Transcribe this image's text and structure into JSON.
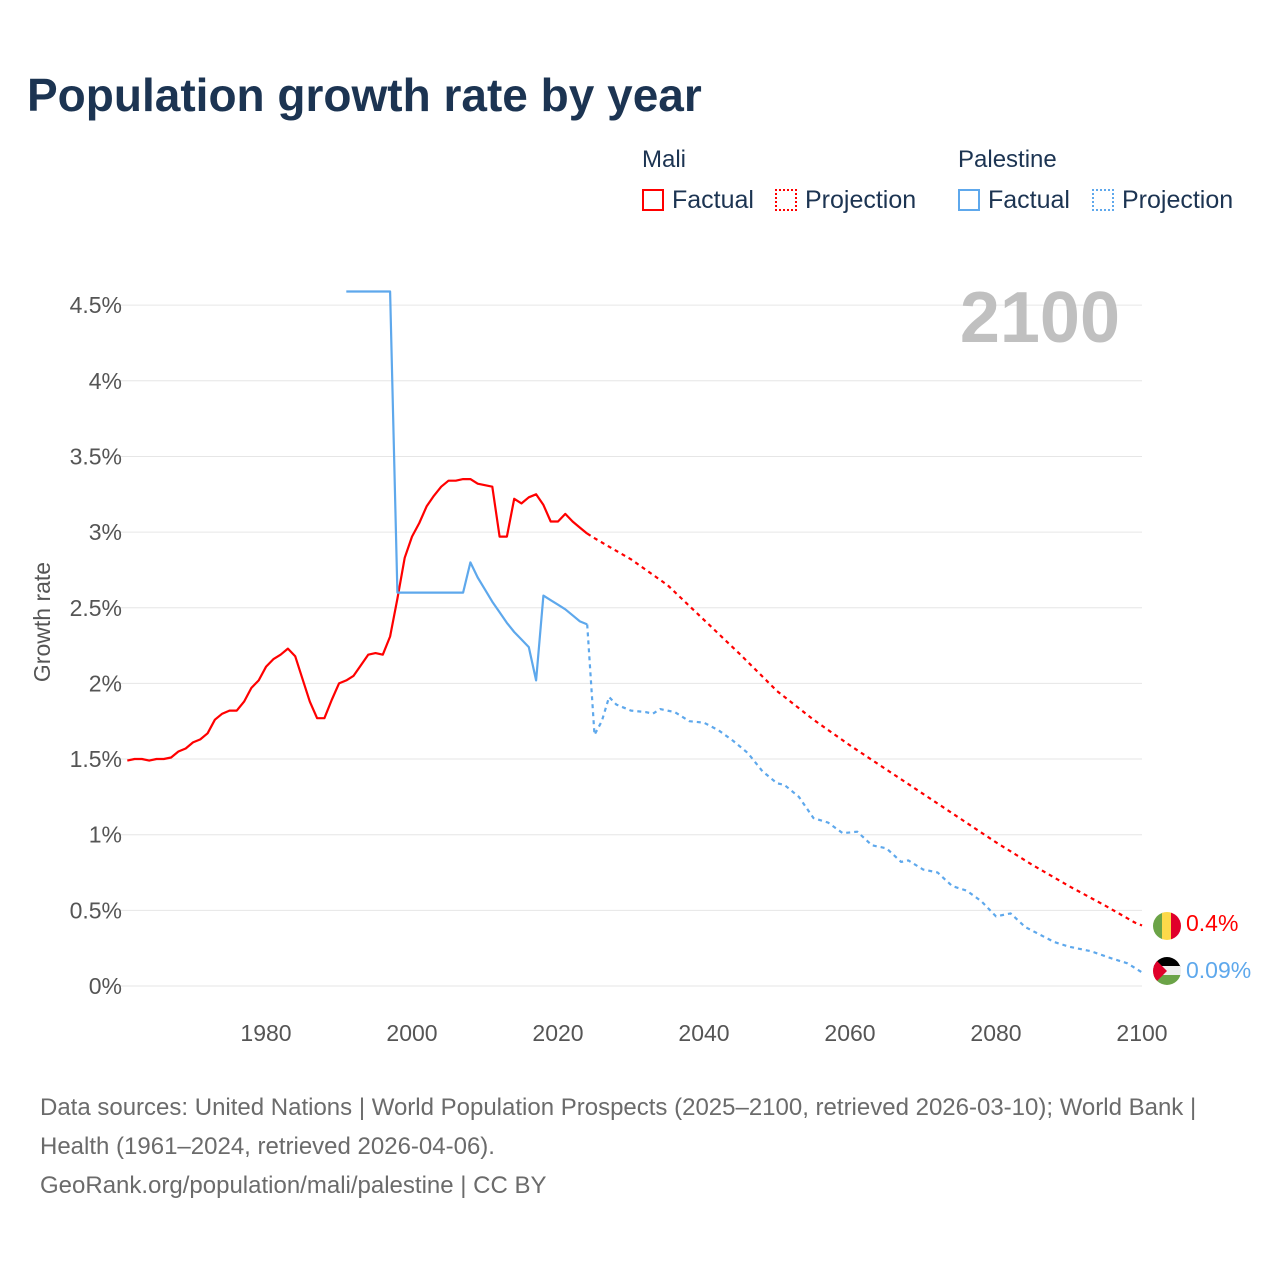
{
  "title": "Population growth rate by year",
  "legend": {
    "groups": [
      {
        "name": "Mali",
        "color": "#ff0000",
        "items": [
          "Factual",
          "Projection"
        ]
      },
      {
        "name": "Palestine",
        "color": "#5ea8ec",
        "items": [
          "Factual",
          "Projection"
        ]
      }
    ]
  },
  "year_label": "2100",
  "end_labels": {
    "mali": "0.4%",
    "palestine": "0.09%"
  },
  "footer": {
    "sources": "Data sources: United Nations | World Population Prospects (2025–2100, retrieved 2026-03-10); World Bank | Health (1961–2024, retrieved 2026-04-06).",
    "link": "GeoRank.org/population/mali/palestine | CC BY"
  },
  "chart_data": {
    "type": "line",
    "title": "Population growth rate by year",
    "xlabel": "",
    "ylabel": "Growth rate",
    "xlim": [
      1961,
      2100
    ],
    "ylim": [
      0,
      4.5
    ],
    "x_ticks": [
      "1980",
      "2000",
      "2020",
      "2040",
      "2060",
      "2080",
      "2100"
    ],
    "y_ticks": [
      "0%",
      "0.5%",
      "1%",
      "1.5%",
      "2%",
      "2.5%",
      "3%",
      "3.5%",
      "4%",
      "4.5%"
    ],
    "grid": true,
    "legend_position": "top-right",
    "series": [
      {
        "name": "Mali Factual",
        "color": "#ff0000",
        "dashed": false,
        "x": [
          1961,
          1962,
          1963,
          1964,
          1965,
          1966,
          1967,
          1968,
          1969,
          1970,
          1971,
          1972,
          1973,
          1974,
          1975,
          1976,
          1977,
          1978,
          1979,
          1980,
          1981,
          1982,
          1983,
          1984,
          1985,
          1986,
          1987,
          1988,
          1989,
          1990,
          1991,
          1992,
          1993,
          1994,
          1995,
          1996,
          1997,
          1998,
          1999,
          2000,
          2001,
          2002,
          2003,
          2004,
          2005,
          2006,
          2007,
          2008,
          2009,
          2010,
          2011,
          2012,
          2013,
          2014,
          2015,
          2016,
          2017,
          2018,
          2019,
          2020,
          2021,
          2022,
          2023,
          2024
        ],
        "y": [
          1.49,
          1.5,
          1.5,
          1.49,
          1.5,
          1.5,
          1.51,
          1.55,
          1.57,
          1.61,
          1.63,
          1.67,
          1.76,
          1.8,
          1.82,
          1.82,
          1.88,
          1.97,
          2.02,
          2.11,
          2.16,
          2.19,
          2.23,
          2.18,
          2.03,
          1.88,
          1.77,
          1.77,
          1.89,
          2.0,
          2.02,
          2.05,
          2.12,
          2.19,
          2.2,
          2.19,
          2.31,
          2.56,
          2.83,
          2.97,
          3.06,
          3.17,
          3.24,
          3.3,
          3.34,
          3.34,
          3.35,
          3.35,
          3.32,
          3.31,
          3.3,
          2.97,
          2.97,
          3.22,
          3.19,
          3.23,
          3.25,
          3.18,
          3.07,
          3.07,
          3.12,
          3.07,
          3.03,
          2.99
        ]
      },
      {
        "name": "Mali Projection",
        "color": "#ff0000",
        "dashed": true,
        "x": [
          2024,
          2025,
          2030,
          2035,
          2040,
          2045,
          2050,
          2055,
          2060,
          2065,
          2070,
          2075,
          2080,
          2085,
          2090,
          2095,
          2099,
          2100
        ],
        "y": [
          2.99,
          2.96,
          2.82,
          2.65,
          2.42,
          2.19,
          1.95,
          1.76,
          1.59,
          1.43,
          1.27,
          1.11,
          0.95,
          0.8,
          0.66,
          0.53,
          0.42,
          0.4
        ]
      },
      {
        "name": "Palestine Factual",
        "color": "#5ea8ec",
        "dashed": false,
        "x": [
          1991,
          1997,
          1998,
          2007,
          2008,
          2009,
          2010,
          2011,
          2012,
          2013,
          2014,
          2015,
          2016,
          2017,
          2018,
          2019,
          2020,
          2021,
          2022,
          2023,
          2024
        ],
        "y": [
          4.59,
          4.59,
          2.6,
          2.6,
          2.8,
          2.7,
          2.62,
          2.54,
          2.47,
          2.4,
          2.34,
          2.29,
          2.24,
          2.02,
          2.58,
          2.55,
          2.52,
          2.49,
          2.45,
          2.41,
          2.39
        ]
      },
      {
        "name": "Palestine Projection",
        "color": "#5ea8ec",
        "dashed": true,
        "x": [
          2024,
          2025,
          2026,
          2027,
          2028,
          2030,
          2032,
          2033,
          2034,
          2036,
          2038,
          2040,
          2042,
          2044,
          2046,
          2048,
          2050,
          2051,
          2053,
          2055,
          2057,
          2059,
          2061,
          2063,
          2065,
          2067,
          2068,
          2070,
          2072,
          2074,
          2076,
          2078,
          2080,
          2082,
          2084,
          2086,
          2088,
          2090,
          2093,
          2096,
          2098,
          2100
        ],
        "y": [
          2.39,
          1.66,
          1.75,
          1.91,
          1.86,
          1.82,
          1.81,
          1.8,
          1.83,
          1.81,
          1.75,
          1.74,
          1.69,
          1.62,
          1.54,
          1.42,
          1.34,
          1.33,
          1.25,
          1.11,
          1.08,
          1.01,
          1.02,
          0.93,
          0.91,
          0.82,
          0.83,
          0.77,
          0.75,
          0.66,
          0.63,
          0.56,
          0.46,
          0.48,
          0.39,
          0.34,
          0.29,
          0.26,
          0.23,
          0.18,
          0.15,
          0.09
        ]
      }
    ]
  }
}
